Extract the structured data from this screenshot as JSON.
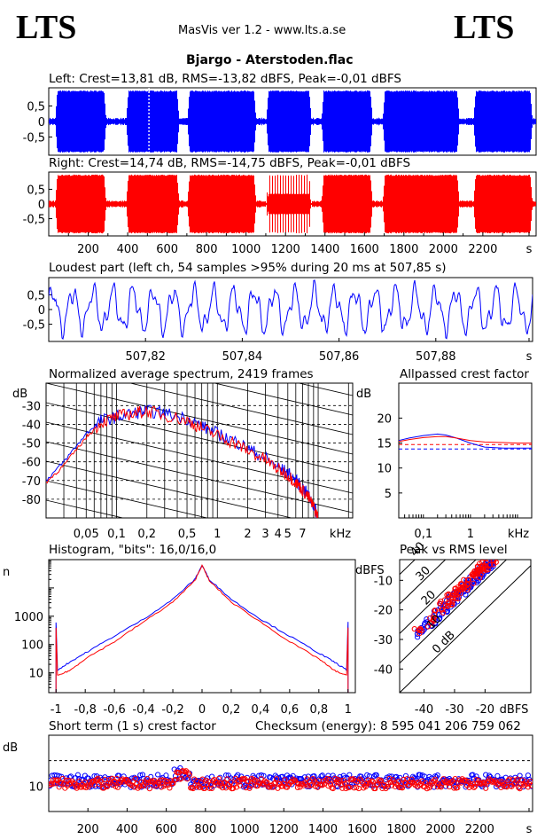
{
  "header": {
    "logo_left": "LTS",
    "logo_right": "LTS",
    "app_line": "MasVis ver 1.2 - www.lts.a.se",
    "file_title": "Bjargo - Aterstoden.flac"
  },
  "colors": {
    "left": "#0000ff",
    "right": "#ff0000",
    "grid": "#000000"
  },
  "chart_data": [
    {
      "id": "waveform-left",
      "type": "area",
      "title": "Left: Crest=13,81 dB, RMS=-13,82 dBFS, Peak=-0,01 dBFS",
      "ylim": [
        -1,
        1
      ],
      "y_ticks": [
        "0,5",
        "0",
        "-0,5"
      ],
      "xlim": [
        0,
        2470
      ],
      "loud_sections_s": [
        [
          30,
          290
        ],
        [
          390,
          660
        ],
        [
          700,
          1050
        ],
        [
          1100,
          1330
        ],
        [
          1380,
          1640
        ],
        [
          1690,
          2080
        ],
        [
          2150,
          2450
        ]
      ],
      "cursor_s": 507.85,
      "color": "left"
    },
    {
      "id": "waveform-right",
      "type": "area",
      "title": "Right: Crest=14,74 dB, RMS=-14,75 dBFS, Peak=-0,01 dBFS",
      "ylim": [
        -1,
        1
      ],
      "y_ticks": [
        "0,5",
        "0",
        "-0,5"
      ],
      "xlim": [
        0,
        2470
      ],
      "x_ticks": [
        "200",
        "400",
        "600",
        "800",
        "1000",
        "1200",
        "1400",
        "1600",
        "1800",
        "2000",
        "2200",
        "s"
      ],
      "color": "right"
    },
    {
      "id": "loudest-part",
      "type": "line",
      "title": "Loudest part (left  ch, 54 samples >95% during 20 ms at 507,85 s)",
      "ylim": [
        -1,
        1
      ],
      "y_ticks": [
        "0,5",
        "0",
        "-0,5"
      ],
      "xlim": [
        507.8,
        507.9
      ],
      "x_ticks": [
        "507,82",
        "507,84",
        "507,86",
        "507,88",
        "s"
      ],
      "color": "left"
    },
    {
      "id": "spectrum",
      "type": "line",
      "title": "Normalized average spectrum, 2419 frames",
      "ylabel": "dB",
      "y_ticks": [
        "-30",
        "-40",
        "-50",
        "-60",
        "-70",
        "-80"
      ],
      "ylim": [
        -90,
        -18
      ],
      "x_ticks": [
        "0,05",
        "0,1",
        "0,2",
        "0,5",
        "1",
        "2",
        "3",
        "4",
        "5",
        "7",
        "kHz"
      ],
      "xlim_khz": [
        0.02,
        22
      ],
      "series": [
        {
          "color": "left",
          "freq_khz": [
            0.02,
            0.03,
            0.05,
            0.07,
            0.1,
            0.15,
            0.2,
            0.3,
            0.5,
            0.7,
            1,
            1.5,
            2,
            3,
            4,
            5,
            6,
            7,
            8,
            9,
            10
          ],
          "db": [
            -70,
            -60,
            -45,
            -38,
            -36,
            -34,
            -33,
            -34,
            -37,
            -41,
            -45,
            -49,
            -53,
            -58,
            -63,
            -66,
            -70,
            -74,
            -78,
            -83,
            -90
          ]
        },
        {
          "color": "right",
          "freq_khz": [
            0.02,
            0.03,
            0.05,
            0.07,
            0.1,
            0.15,
            0.2,
            0.3,
            0.5,
            0.7,
            1,
            1.5,
            2,
            3,
            4,
            5,
            6,
            7,
            8,
            9,
            10
          ],
          "db": [
            -71,
            -62,
            -47,
            -39,
            -36,
            -34,
            -33,
            -35,
            -38,
            -42,
            -46,
            -50,
            -54,
            -59,
            -64,
            -67,
            -71,
            -75,
            -79,
            -84,
            -90
          ]
        }
      ]
    },
    {
      "id": "allpass-crest",
      "type": "line",
      "title": "Allpassed crest factor",
      "ylabel": "dB",
      "y_ticks": [
        "20",
        "15",
        "10",
        "5"
      ],
      "ylim": [
        0,
        27
      ],
      "x_ticks": [
        "0,1",
        "1",
        "kHz"
      ],
      "xlim_khz": [
        0.03,
        20
      ],
      "reference_db": [
        13.8,
        14.7
      ],
      "series": [
        {
          "color": "left",
          "freq_khz": [
            0.03,
            0.05,
            0.1,
            0.2,
            0.3,
            0.5,
            1,
            2,
            5,
            10,
            20
          ],
          "db": [
            15.5,
            16.0,
            16.5,
            16.8,
            16.6,
            16.0,
            15.0,
            14.2,
            14.0,
            14.0,
            14.0
          ]
        },
        {
          "color": "right",
          "freq_khz": [
            0.03,
            0.05,
            0.1,
            0.2,
            0.3,
            0.5,
            1,
            2,
            5,
            10,
            20
          ],
          "db": [
            15.3,
            15.7,
            16.1,
            16.3,
            16.3,
            16.0,
            15.5,
            15.2,
            15.1,
            15.0,
            15.0
          ]
        }
      ]
    },
    {
      "id": "histogram",
      "type": "line",
      "title": "Histogram, \"bits\": 16,0/16,0",
      "ylabel": "n",
      "y_ticks": [
        "1000",
        "100",
        "10"
      ],
      "x_ticks": [
        "-1",
        "-0,8",
        "-0,6",
        "-0,4",
        "-0,2",
        "0",
        "0,2",
        "0,4",
        "0,6",
        "0,8",
        "1"
      ],
      "xlim": [
        -1.05,
        1.05
      ],
      "log_y_decades": [
        0.3,
        5.0
      ],
      "series": [
        {
          "color": "left",
          "x": [
            -1.0,
            -0.99,
            -0.9,
            -0.8,
            -0.6,
            -0.4,
            -0.2,
            -0.05,
            0,
            0.05,
            0.2,
            0.4,
            0.6,
            0.8,
            0.9,
            0.99,
            1.0
          ],
          "log10_n": [
            2.8,
            1.1,
            1.4,
            1.7,
            2.3,
            2.9,
            3.6,
            4.3,
            4.8,
            4.3,
            3.6,
            2.9,
            2.3,
            1.7,
            1.4,
            1.1,
            2.8
          ]
        },
        {
          "color": "right",
          "x": [
            -1.0,
            -0.99,
            -0.9,
            -0.8,
            -0.6,
            -0.4,
            -0.2,
            -0.05,
            0,
            0.05,
            0.2,
            0.4,
            0.6,
            0.8,
            0.9,
            0.99,
            1.0
          ],
          "log10_n": [
            2.6,
            0.9,
            1.1,
            1.5,
            2.1,
            2.8,
            3.5,
            4.25,
            4.8,
            4.25,
            3.5,
            2.8,
            2.1,
            1.5,
            1.1,
            0.9,
            2.6
          ]
        }
      ]
    },
    {
      "id": "peak-vs-rms",
      "type": "scatter",
      "title": "Peak vs RMS level",
      "ylabel": "dBFS",
      "xlabel": "dBFS",
      "y_ticks": [
        "-10",
        "-20",
        "-30",
        "-40"
      ],
      "x_ticks": [
        "-40",
        "-30",
        "-20"
      ],
      "xlim": [
        -48,
        -5
      ],
      "ylim": [
        -48,
        -3
      ],
      "crest_lines_db": [
        "40",
        "30",
        "20",
        "10",
        "0 dB"
      ],
      "series": [
        {
          "color": "left",
          "rms_range": [
            -45,
            -17
          ],
          "crest_mean": 14
        },
        {
          "color": "right",
          "rms_range": [
            -44,
            -16
          ],
          "crest_mean": 15
        }
      ]
    },
    {
      "id": "short-term-crest",
      "type": "scatter",
      "title": "Short term (1 s) crest factor",
      "checksum": "Checksum (energy):  8 595 041 206 759 062",
      "ylabel": "dB",
      "y_ticks": [
        "10"
      ],
      "ylim": [
        0,
        30
      ],
      "dashed_y": 20,
      "xlim": [
        0,
        2470
      ],
      "x_ticks": [
        "200",
        "400",
        "600",
        "800",
        "1000",
        "1200",
        "1400",
        "1600",
        "1800",
        "2000",
        "2200",
        "s"
      ],
      "series": [
        {
          "color": "left",
          "mean_db": 12,
          "spread_db": 2.5
        },
        {
          "color": "right",
          "mean_db": 11,
          "spread_db": 2.0
        }
      ]
    }
  ]
}
